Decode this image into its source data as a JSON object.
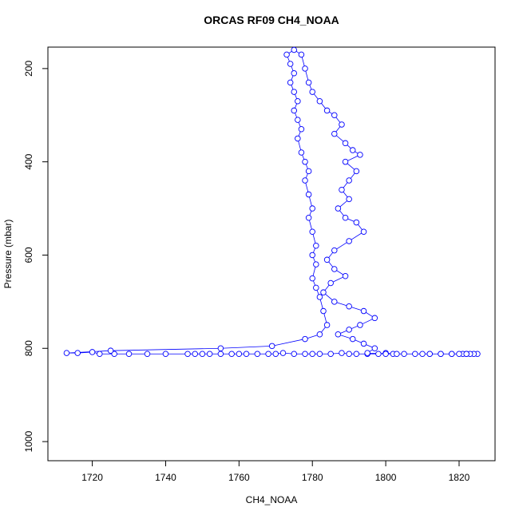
{
  "chart_data": {
    "type": "scatter",
    "title": "ORCAS RF09 CH4_NOAA",
    "x_label": "CH4_NOAA",
    "y_label": "Pressure (mbar)",
    "xlim": [
      1707.9,
      1829.8
    ],
    "ylim": [
      1041,
      154
    ],
    "xticks": [
      1720,
      1740,
      1760,
      1780,
      1800,
      1820
    ],
    "yticks": [
      200,
      400,
      600,
      800,
      1000
    ],
    "x": [
      1825,
      1824,
      1823,
      1822,
      1821,
      1820,
      1818,
      1815,
      1812,
      1810,
      1805,
      1802,
      1800,
      1798,
      1795,
      1792,
      1790,
      1788,
      1785,
      1782,
      1780,
      1778,
      1775,
      1772,
      1770,
      1768,
      1765,
      1762,
      1760,
      1758,
      1755,
      1752,
      1750,
      1748,
      1746,
      1740,
      1735,
      1730,
      1726,
      1722,
      1720,
      1716,
      1713,
      1725,
      1755,
      1769,
      1778,
      1782,
      1784,
      1783,
      1782,
      1781,
      1780,
      1781,
      1780,
      1781,
      1780,
      1779,
      1780,
      1779,
      1778,
      1779,
      1778,
      1777,
      1776,
      1777,
      1776,
      1775,
      1776,
      1775,
      1774,
      1775,
      1774,
      1773,
      1775,
      1777,
      1778,
      1779,
      1780,
      1782,
      1784,
      1786,
      1788,
      1786,
      1789,
      1791,
      1793,
      1789,
      1792,
      1790,
      1788,
      1790,
      1787,
      1789,
      1792,
      1794,
      1790,
      1786,
      1784,
      1786,
      1789,
      1785,
      1783,
      1786,
      1790,
      1794,
      1797,
      1793,
      1790,
      1787,
      1791,
      1794,
      1797,
      1795,
      1800,
      1803,
      1808,
      1812,
      1815,
      1818,
      1822
    ],
    "series": [
      {
        "color": "#0000ff",
        "values": [
          812,
          812,
          812,
          812,
          812,
          812,
          812,
          812,
          812,
          812,
          812,
          812,
          810,
          812,
          812,
          812,
          812,
          810,
          812,
          812,
          812,
          812,
          812,
          810,
          812,
          812,
          812,
          812,
          812,
          812,
          812,
          812,
          812,
          812,
          812,
          812,
          812,
          812,
          812,
          812,
          808,
          810,
          810,
          805,
          800,
          795,
          780,
          770,
          750,
          720,
          690,
          670,
          650,
          620,
          600,
          580,
          550,
          520,
          500,
          470,
          440,
          420,
          400,
          380,
          350,
          330,
          310,
          290,
          270,
          250,
          230,
          210,
          190,
          170,
          160,
          170,
          200,
          230,
          250,
          270,
          290,
          300,
          320,
          340,
          360,
          375,
          385,
          400,
          420,
          440,
          460,
          480,
          500,
          520,
          530,
          550,
          570,
          590,
          610,
          630,
          645,
          660,
          680,
          700,
          710,
          720,
          735,
          750,
          760,
          770,
          780,
          790,
          800,
          810,
          812,
          812,
          812,
          812,
          812,
          812,
          812
        ]
      }
    ],
    "grid": false
  }
}
